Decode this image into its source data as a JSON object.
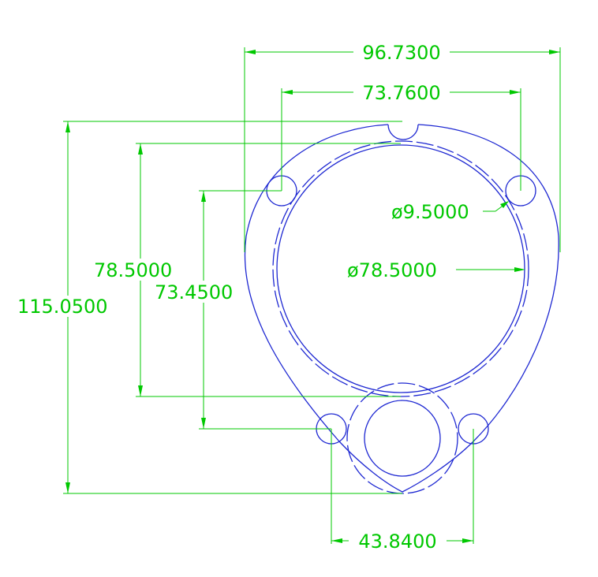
{
  "dimensions": {
    "overall_width": "96.7300",
    "hole_spacing_top": "73.7600",
    "hole_diameter": "ø9.5000",
    "bore_diameter": "ø78.5000",
    "overall_height": "115.0500",
    "bore_height": "78.5000",
    "hole_height": "73.4500",
    "hole_spacing_bottom": "43.8400"
  },
  "colors": {
    "dimension": "#00c800",
    "part": "#1e28d2",
    "background": "#ffffff"
  }
}
